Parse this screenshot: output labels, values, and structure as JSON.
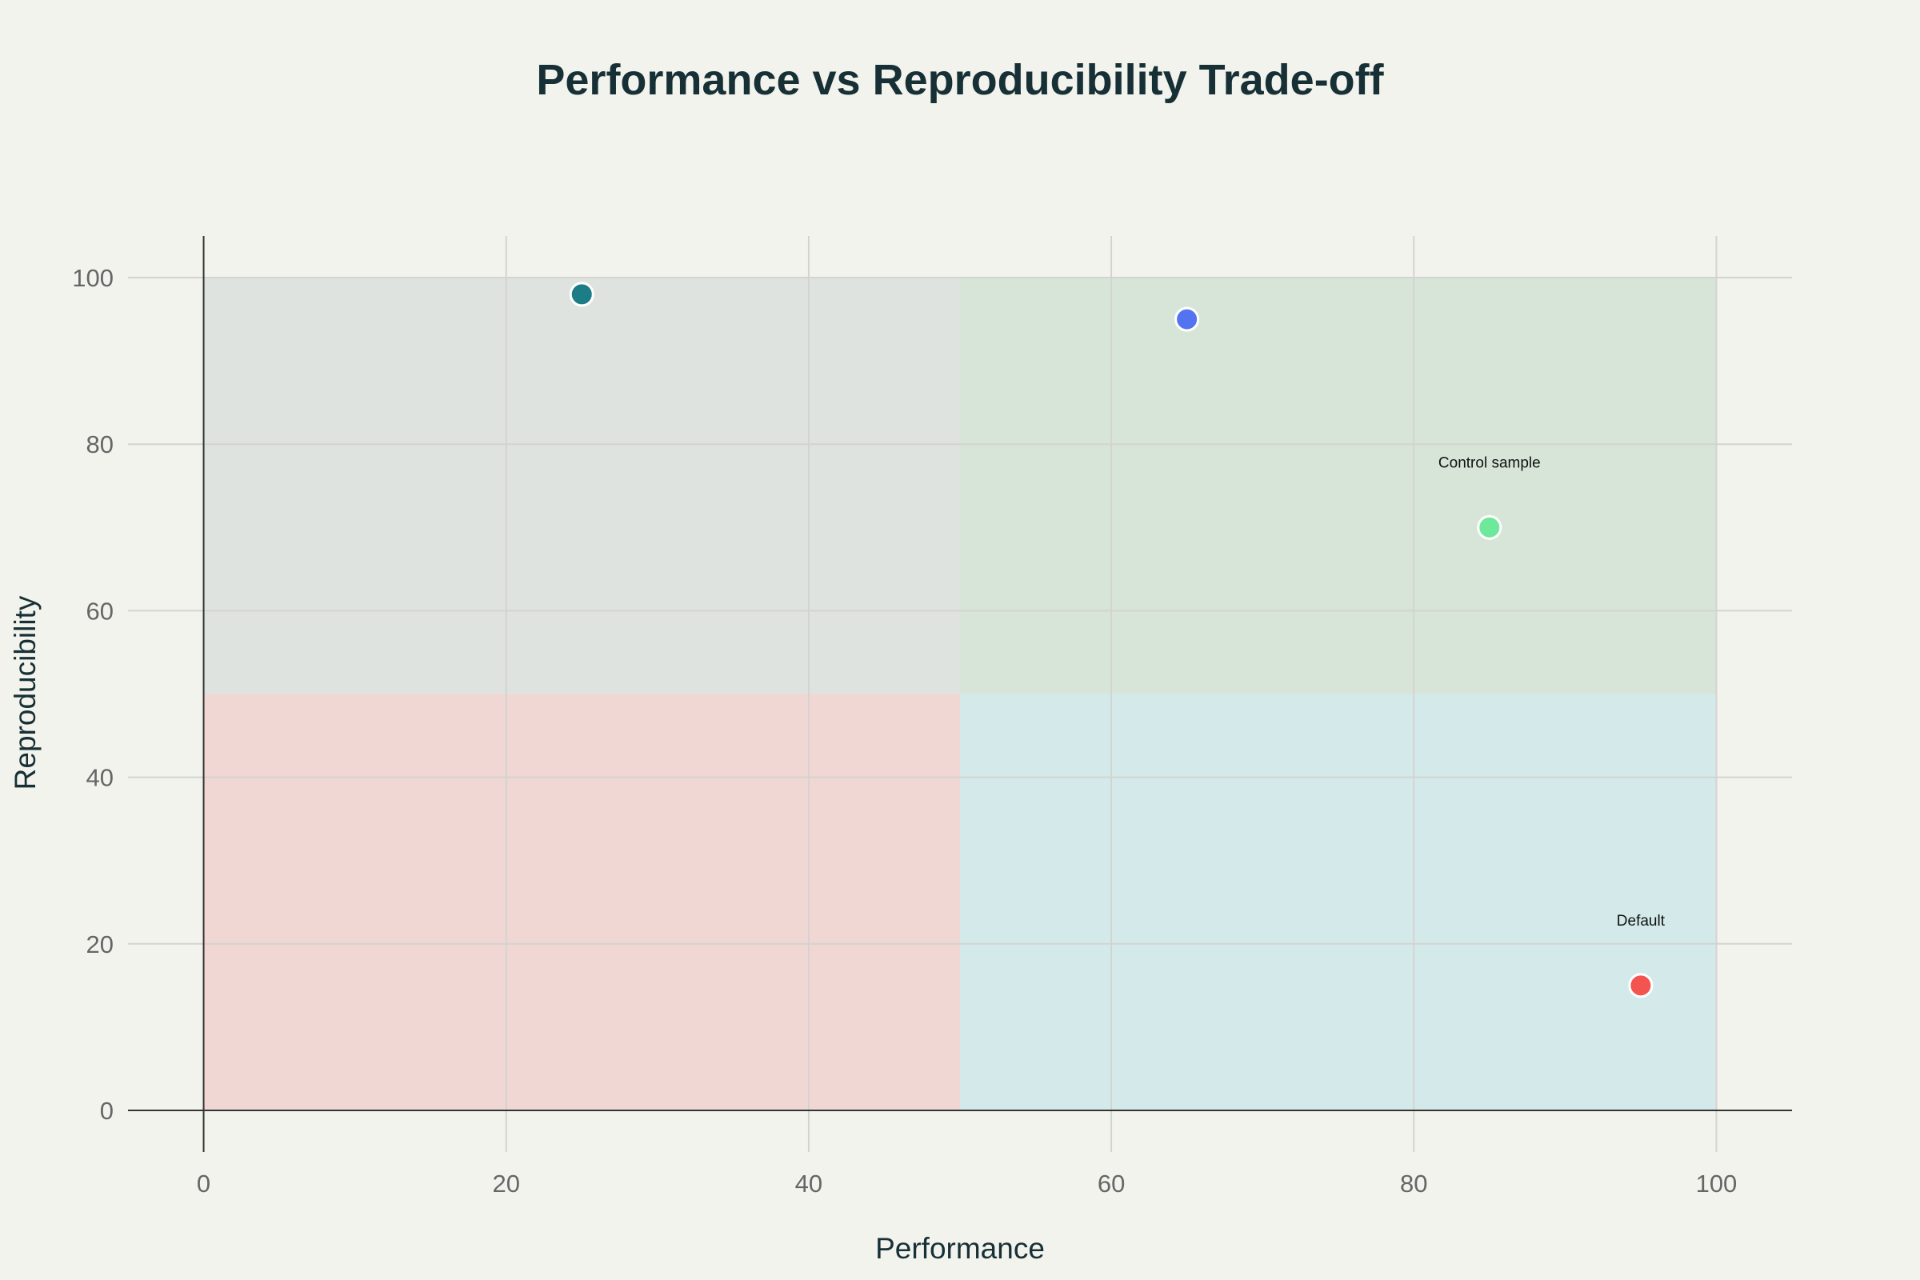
{
  "chart_data": {
    "type": "scatter",
    "title": "Performance vs Reproducibility Trade-off",
    "xlabel": "Performance",
    "ylabel": "Reproducibility",
    "xlim": [
      -5,
      105
    ],
    "ylim": [
      -5,
      105
    ],
    "xticks": [
      0,
      20,
      40,
      60,
      80,
      100
    ],
    "yticks": [
      0,
      20,
      40,
      60,
      80,
      100
    ],
    "grid": true,
    "regions": [
      {
        "x": [
          0,
          50
        ],
        "y": [
          50,
          100
        ],
        "color": "#dfe3e0"
      },
      {
        "x": [
          50,
          100
        ],
        "y": [
          50,
          100
        ],
        "color": "#d7e5d8"
      },
      {
        "x": [
          0,
          50
        ],
        "y": [
          0,
          50
        ],
        "color": "#f0d7d4"
      },
      {
        "x": [
          50,
          100
        ],
        "y": [
          0,
          50
        ],
        "color": "#d4eaea"
      }
    ],
    "points": [
      {
        "x": 25,
        "y": 98,
        "color": "#1d7d87",
        "label": ""
      },
      {
        "x": 65,
        "y": 95,
        "color": "#5473f0",
        "label": ""
      },
      {
        "x": 85,
        "y": 70,
        "color": "#6ee89a",
        "label": "Control sample"
      },
      {
        "x": 95,
        "y": 15,
        "color": "#f35450",
        "label": "Default"
      }
    ]
  }
}
